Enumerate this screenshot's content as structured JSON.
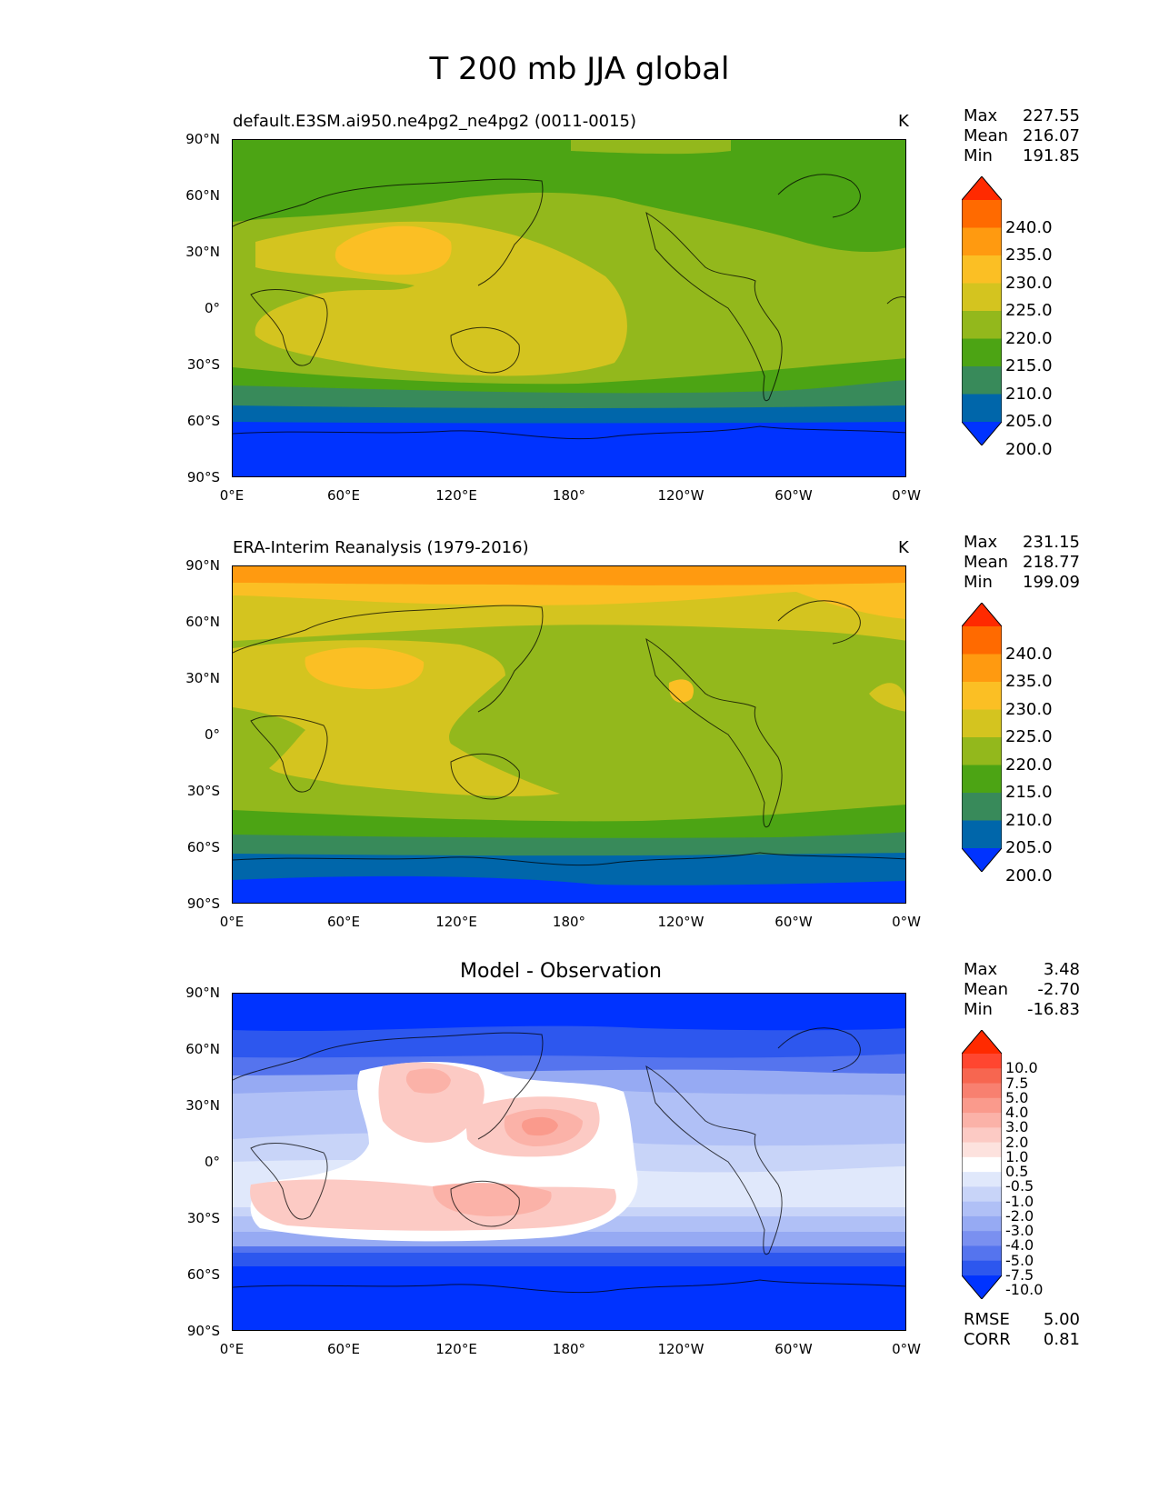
{
  "figure": {
    "title": "T 200 mb JJA global"
  },
  "axes": {
    "lat_labels": [
      "90°N",
      "60°N",
      "30°N",
      "0°",
      "30°S",
      "60°S",
      "90°S"
    ],
    "lon_labels": [
      "0°E",
      "60°E",
      "120°E",
      "180°",
      "120°W",
      "60°W",
      "0°W"
    ]
  },
  "stat_labels": {
    "max": "Max",
    "mean": "Mean",
    "min": "Min",
    "rmse": "RMSE",
    "corr": "CORR"
  },
  "panels": [
    {
      "title": "default.E3SM.ai950.ne4pg2_ne4pg2 (0011-0015)",
      "units": "K",
      "stats": {
        "max": "227.55",
        "mean": "216.07",
        "min": "191.85"
      },
      "colorbar": {
        "labels": [
          "240.0",
          "235.0",
          "230.0",
          "225.0",
          "220.0",
          "215.0",
          "210.0",
          "205.0",
          "200.0"
        ],
        "colors": [
          "#ff2a00",
          "#ff6a00",
          "#ff9a10",
          "#fbbf24",
          "#d4c41f",
          "#93b81c",
          "#4ca414",
          "#388a5a",
          "#0066aa",
          "#0033ff"
        ]
      }
    },
    {
      "title": "ERA-Interim Reanalysis (1979-2016)",
      "units": "K",
      "stats": {
        "max": "231.15",
        "mean": "218.77",
        "min": "199.09"
      },
      "colorbar": {
        "labels": [
          "240.0",
          "235.0",
          "230.0",
          "225.0",
          "220.0",
          "215.0",
          "210.0",
          "205.0",
          "200.0"
        ],
        "colors": [
          "#ff2a00",
          "#ff6a00",
          "#ff9a10",
          "#fbbf24",
          "#d4c41f",
          "#93b81c",
          "#4ca414",
          "#388a5a",
          "#0066aa",
          "#0033ff"
        ]
      }
    },
    {
      "title": "Model - Observation",
      "units": "",
      "stats": {
        "max": "3.48",
        "mean": "-2.70",
        "min": "-16.83"
      },
      "metrics": {
        "rmse": "5.00",
        "corr": "0.81"
      },
      "colorbar": {
        "labels": [
          "10.0",
          "7.5",
          "5.0",
          "4.0",
          "3.0",
          "2.0",
          "1.0",
          "0.5",
          "-0.5",
          "-1.0",
          "-2.0",
          "-3.0",
          "-4.0",
          "-5.0",
          "-7.5",
          "-10.0"
        ],
        "colors": [
          "#ff2a00",
          "#ff4630",
          "#f76650",
          "#f88070",
          "#fa9a8c",
          "#fbb2a8",
          "#fccac4",
          "#fde2de",
          "#ffffff",
          "#e0e8fb",
          "#c8d4f8",
          "#b0c0f6",
          "#96aaf3",
          "#7a90f0",
          "#5574ee",
          "#2d57ee",
          "#0033ff"
        ]
      }
    }
  ]
}
